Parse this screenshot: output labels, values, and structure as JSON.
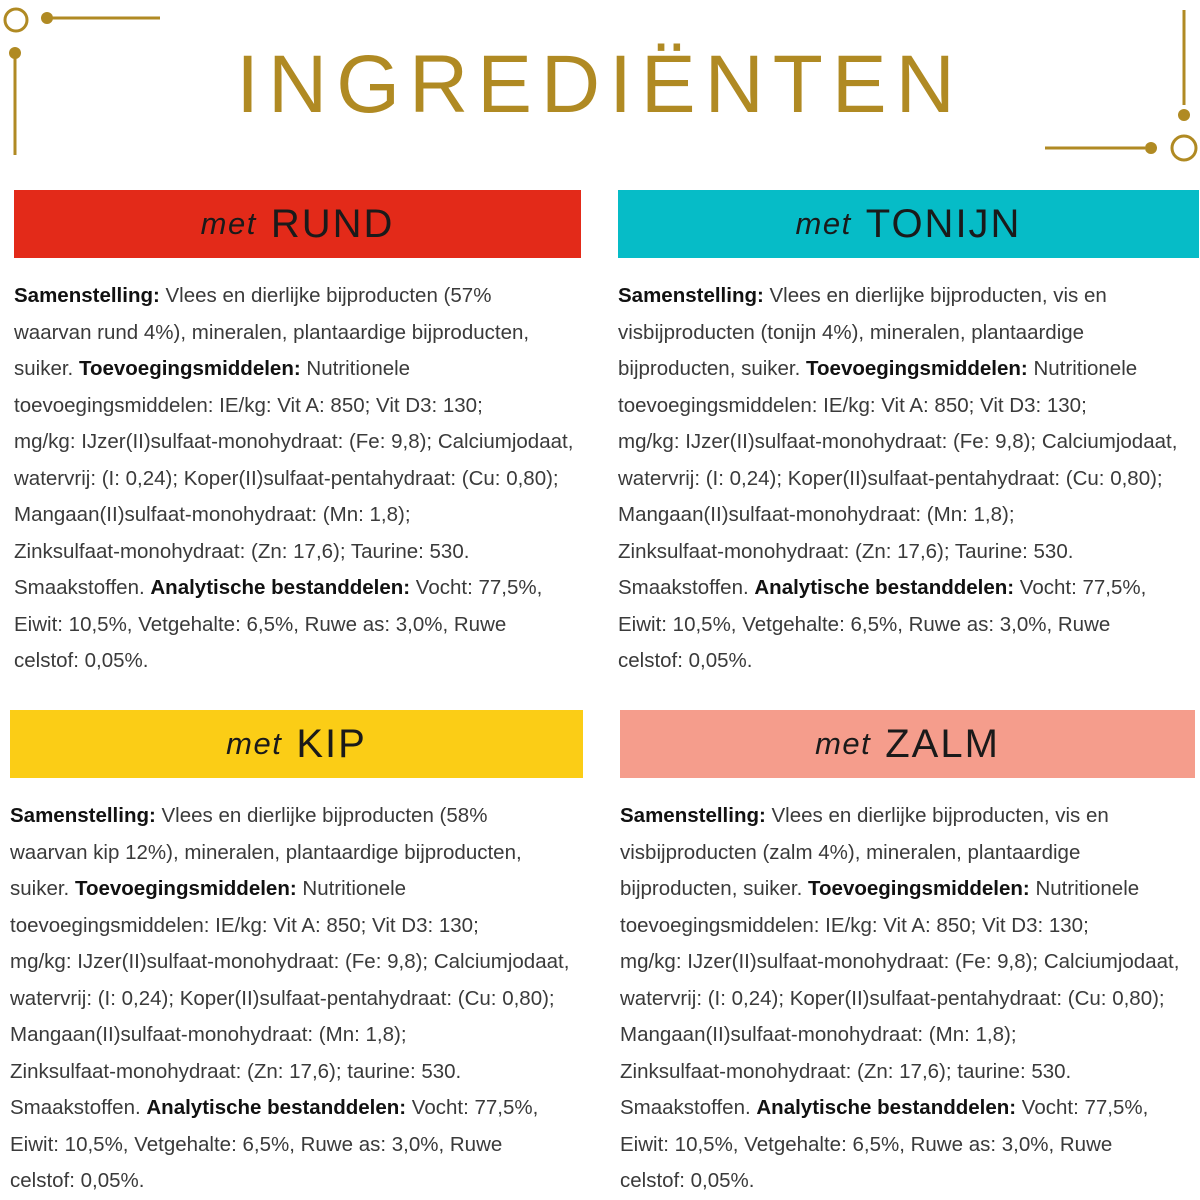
{
  "title": "INGREDIËNTEN",
  "colors": {
    "gold": "#b08a23",
    "rund": "#e32a19",
    "tonijn": "#06bcc7",
    "kip": "#fbcd16",
    "zalm": "#f59d8c"
  },
  "sections": [
    {
      "met": "met",
      "name": "RUND",
      "lines": [
        [
          [
            "b",
            "Samenstelling:"
          ],
          [
            "t",
            " Vlees en dierlijke bijproducten (57%"
          ]
        ],
        [
          [
            "t",
            "waarvan rund 4%), mineralen, plantaardige bijproducten,"
          ]
        ],
        [
          [
            "t",
            "suiker. "
          ],
          [
            "b",
            "Toevoegingsmiddelen:"
          ],
          [
            "t",
            " Nutritionele"
          ]
        ],
        [
          [
            "t",
            "toevoegingsmiddelen: IE/kg: Vit A: 850; Vit D3: 130;"
          ]
        ],
        [
          [
            "t",
            "mg/kg: IJzer(II)sulfaat-monohydraat: (Fe: 9,8); Calciumjodaat,"
          ]
        ],
        [
          [
            "t",
            "watervrij: (I: 0,24); Koper(II)sulfaat-pentahydraat: (Cu: 0,80);"
          ]
        ],
        [
          [
            "t",
            "Mangaan(II)sulfaat-monohydraat: (Mn: 1,8);"
          ]
        ],
        [
          [
            "t",
            "Zinksulfaat-monohydraat: (Zn: 17,6); Taurine: 530."
          ]
        ],
        [
          [
            "t",
            "Smaakstoffen. "
          ],
          [
            "b",
            "Analytische bestanddelen:"
          ],
          [
            "t",
            " Vocht: 77,5%,"
          ]
        ],
        [
          [
            "t",
            "Eiwit: 10,5%, Vetgehalte: 6,5%, Ruwe as: 3,0%, Ruwe"
          ]
        ],
        [
          [
            "t",
            "celstof: 0,05%."
          ]
        ]
      ]
    },
    {
      "met": "met",
      "name": "TONIJN",
      "lines": [
        [
          [
            "b",
            "Samenstelling:"
          ],
          [
            "t",
            " Vlees en dierlijke bijproducten, vis en"
          ]
        ],
        [
          [
            "t",
            "visbijproducten (tonijn 4%), mineralen, plantaardige"
          ]
        ],
        [
          [
            "t",
            "bijproducten, suiker. "
          ],
          [
            "b",
            "Toevoegingsmiddelen:"
          ],
          [
            "t",
            " Nutritionele"
          ]
        ],
        [
          [
            "t",
            "toevoegingsmiddelen: IE/kg: Vit A: 850; Vit D3: 130;"
          ]
        ],
        [
          [
            "t",
            "mg/kg: IJzer(II)sulfaat-monohydraat: (Fe: 9,8); Calciumjodaat,"
          ]
        ],
        [
          [
            "t",
            "watervrij: (I: 0,24); Koper(II)sulfaat-pentahydraat: (Cu: 0,80);"
          ]
        ],
        [
          [
            "t",
            "Mangaan(II)sulfaat-monohydraat: (Mn: 1,8);"
          ]
        ],
        [
          [
            "t",
            "Zinksulfaat-monohydraat: (Zn: 17,6); Taurine: 530."
          ]
        ],
        [
          [
            "t",
            "Smaakstoffen. "
          ],
          [
            "b",
            "Analytische bestanddelen:"
          ],
          [
            "t",
            " Vocht: 77,5%,"
          ]
        ],
        [
          [
            "t",
            "Eiwit: 10,5%, Vetgehalte: 6,5%, Ruwe as: 3,0%, Ruwe"
          ]
        ],
        [
          [
            "t",
            "celstof: 0,05%."
          ]
        ]
      ]
    },
    {
      "met": "met",
      "name": "KIP",
      "lines": [
        [
          [
            "b",
            "Samenstelling:"
          ],
          [
            "t",
            " Vlees en dierlijke bijproducten (58%"
          ]
        ],
        [
          [
            "t",
            "waarvan kip 12%), mineralen, plantaardige bijproducten,"
          ]
        ],
        [
          [
            "t",
            "suiker. "
          ],
          [
            "b",
            "Toevoegingsmiddelen:"
          ],
          [
            "t",
            " Nutritionele"
          ]
        ],
        [
          [
            "t",
            "toevoegingsmiddelen: IE/kg: Vit A: 850; Vit D3: 130;"
          ]
        ],
        [
          [
            "t",
            "mg/kg: IJzer(II)sulfaat-monohydraat: (Fe: 9,8); Calciumjodaat,"
          ]
        ],
        [
          [
            "t",
            "watervrij: (I: 0,24); Koper(II)sulfaat-pentahydraat: (Cu: 0,80);"
          ]
        ],
        [
          [
            "t",
            "Mangaan(II)sulfaat-monohydraat: (Mn: 1,8);"
          ]
        ],
        [
          [
            "t",
            "Zinksulfaat-monohydraat: (Zn: 17,6); taurine: 530."
          ]
        ],
        [
          [
            "t",
            "Smaakstoffen. "
          ],
          [
            "b",
            "Analytische bestanddelen:"
          ],
          [
            "t",
            " Vocht: 77,5%,"
          ]
        ],
        [
          [
            "t",
            "Eiwit: 10,5%, Vetgehalte: 6,5%, Ruwe as: 3,0%, Ruwe"
          ]
        ],
        [
          [
            "t",
            "celstof: 0,05%."
          ]
        ]
      ]
    },
    {
      "met": "met",
      "name": "ZALM",
      "lines": [
        [
          [
            "b",
            "Samenstelling:"
          ],
          [
            "t",
            " Vlees en dierlijke bijproducten, vis en"
          ]
        ],
        [
          [
            "t",
            "visbijproducten (zalm 4%), mineralen, plantaardige"
          ]
        ],
        [
          [
            "t",
            "bijproducten, suiker. "
          ],
          [
            "b",
            "Toevoegingsmiddelen:"
          ],
          [
            "t",
            " Nutritionele"
          ]
        ],
        [
          [
            "t",
            "toevoegingsmiddelen: IE/kg: Vit A: 850; Vit D3: 130;"
          ]
        ],
        [
          [
            "t",
            "mg/kg: IJzer(II)sulfaat-monohydraat: (Fe: 9,8); Calciumjodaat,"
          ]
        ],
        [
          [
            "t",
            "watervrij: (I: 0,24); Koper(II)sulfaat-pentahydraat: (Cu: 0,80);"
          ]
        ],
        [
          [
            "t",
            "Mangaan(II)sulfaat-monohydraat: (Mn: 1,8);"
          ]
        ],
        [
          [
            "t",
            "Zinksulfaat-monohydraat: (Zn: 17,6); taurine: 530."
          ]
        ],
        [
          [
            "t",
            "Smaakstoffen. "
          ],
          [
            "b",
            "Analytische bestanddelen:"
          ],
          [
            "t",
            " Vocht: 77,5%,"
          ]
        ],
        [
          [
            "t",
            "Eiwit: 10,5%, Vetgehalte: 6,5%, Ruwe as: 3,0%, Ruwe"
          ]
        ],
        [
          [
            "t",
            "celstof: 0,05%."
          ]
        ]
      ]
    }
  ]
}
